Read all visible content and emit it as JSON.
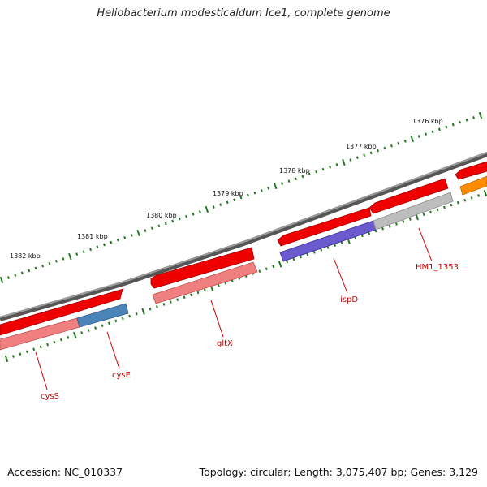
{
  "title": "Heliobacterium modesticaldum Ice1, complete genome",
  "footer": {
    "accession": "Accession: NC_010337",
    "summary": "Topology: circular; Length: 3,075,407 bp; Genes: 3,129"
  },
  "colors": {
    "backbone": "#7a7a7a",
    "tick": "#1f7a1f",
    "label": "#cc0000",
    "cds_forward": "#ee0000",
    "gene_salmon": "#f08080",
    "gene_steelblue": "#4a84b8",
    "gene_slateblue": "#6a5acd",
    "gene_gray": "#bdbdbd",
    "gene_orange": "#ff8c00"
  },
  "scale_labels": [
    "1376 kbp",
    "1377 kbp",
    "1378 kbp",
    "1379 kbp",
    "1380 kbp",
    "1381 kbp",
    "1382 kbp"
  ],
  "gene_labels": [
    "HM1_1353",
    "ispD",
    "gltX",
    "cysE",
    "cysS"
  ]
}
